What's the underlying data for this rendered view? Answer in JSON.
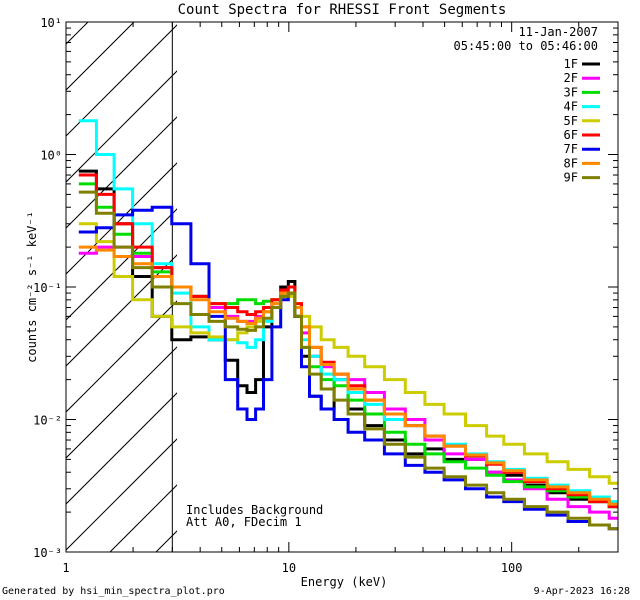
{
  "chart_data": {
    "type": "line",
    "title": "Count Spectra for RHESSI Front Segments",
    "xlabel": "Energy (keV)",
    "ylabel": "counts cm⁻² s⁻¹ keV⁻¹",
    "xscale": "log",
    "yscale": "log",
    "xlim": [
      1,
      300
    ],
    "ylim": [
      0.001,
      10
    ],
    "x_ticks": [
      {
        "value": 1,
        "label": "1"
      },
      {
        "value": 10,
        "label": "10"
      },
      {
        "value": 100,
        "label": "100"
      }
    ],
    "y_ticks": [
      {
        "value": 0.001,
        "label": "10⁻³"
      },
      {
        "value": 0.01,
        "label": "10⁻²"
      },
      {
        "value": 0.1,
        "label": "10⁻¹"
      },
      {
        "value": 1,
        "label": "10⁰"
      },
      {
        "value": 10,
        "label": "10¹"
      }
    ],
    "shaded_region": {
      "from": 1,
      "to": 3,
      "pattern": "diagonal hatch"
    },
    "date": "11-Jan-2007",
    "time_range": "05:45:00 to 05:46:00",
    "annotations": [
      "Includes Background",
      "Att A0, FDecim 1"
    ],
    "energy": [
      1.25,
      1.5,
      1.8,
      2.2,
      2.7,
      3.3,
      4.0,
      4.8,
      5.6,
      6.2,
      6.8,
      7.4,
      8.0,
      8.8,
      9.6,
      10.3,
      11.0,
      11.8,
      13,
      15,
      17,
      20,
      24,
      30,
      37,
      45,
      55,
      70,
      85,
      100,
      130,
      160,
      200,
      250,
      300
    ],
    "series": [
      {
        "name": "1F",
        "color": "#000000",
        "values": [
          0.75,
          0.55,
          0.3,
          0.12,
          0.06,
          0.04,
          0.042,
          0.04,
          0.028,
          0.018,
          0.016,
          0.02,
          0.05,
          0.07,
          0.1,
          0.11,
          0.06,
          0.03,
          0.015,
          0.012,
          0.02,
          0.012,
          0.009,
          0.007,
          0.0055,
          0.006,
          0.005,
          0.005,
          0.004,
          0.0038,
          0.0032,
          0.0028,
          0.0025,
          0.0024,
          0.0022
        ]
      },
      {
        "name": "2F",
        "color": "#ff00ff",
        "values": [
          0.18,
          0.2,
          0.2,
          0.17,
          0.14,
          0.1,
          0.085,
          0.07,
          0.06,
          0.055,
          0.055,
          0.06,
          0.07,
          0.08,
          0.09,
          0.09,
          0.07,
          0.045,
          0.03,
          0.025,
          0.022,
          0.02,
          0.016,
          0.012,
          0.01,
          0.007,
          0.0055,
          0.005,
          0.004,
          0.0035,
          0.003,
          0.0025,
          0.0022,
          0.002,
          0.0018
        ]
      },
      {
        "name": "3F",
        "color": "#00dd00",
        "values": [
          0.6,
          0.4,
          0.25,
          0.18,
          0.13,
          0.1,
          0.085,
          0.075,
          0.075,
          0.08,
          0.08,
          0.075,
          0.078,
          0.08,
          0.085,
          0.09,
          0.06,
          0.035,
          0.025,
          0.02,
          0.018,
          0.014,
          0.011,
          0.008,
          0.0065,
          0.0055,
          0.0048,
          0.0043,
          0.0038,
          0.0034,
          0.0031,
          0.0029,
          0.0026,
          0.0024,
          0.0022
        ]
      },
      {
        "name": "4F",
        "color": "#00ffff",
        "values": [
          1.8,
          1.0,
          0.55,
          0.3,
          0.15,
          0.09,
          0.05,
          0.04,
          0.04,
          0.038,
          0.035,
          0.04,
          0.055,
          0.075,
          0.09,
          0.09,
          0.06,
          0.04,
          0.03,
          0.022,
          0.02,
          0.016,
          0.013,
          0.01,
          0.009,
          0.0075,
          0.0065,
          0.0055,
          0.0048,
          0.0042,
          0.0036,
          0.0032,
          0.0029,
          0.0026,
          0.0024
        ]
      },
      {
        "name": "5F",
        "color": "#cccc00",
        "values": [
          0.3,
          0.22,
          0.12,
          0.08,
          0.06,
          0.05,
          0.045,
          0.042,
          0.04,
          0.045,
          0.05,
          0.055,
          0.065,
          0.08,
          0.09,
          0.085,
          0.07,
          0.06,
          0.05,
          0.04,
          0.035,
          0.03,
          0.025,
          0.02,
          0.016,
          0.013,
          0.011,
          0.009,
          0.0075,
          0.0065,
          0.0055,
          0.0048,
          0.0042,
          0.0037,
          0.0033
        ]
      },
      {
        "name": "6F",
        "color": "#ff0000",
        "values": [
          0.7,
          0.5,
          0.3,
          0.2,
          0.14,
          0.1,
          0.085,
          0.075,
          0.07,
          0.065,
          0.062,
          0.065,
          0.07,
          0.08,
          0.095,
          0.1,
          0.075,
          0.05,
          0.035,
          0.027,
          0.022,
          0.018,
          0.014,
          0.011,
          0.009,
          0.0075,
          0.0063,
          0.0053,
          0.0046,
          0.004,
          0.0034,
          0.003,
          0.0027,
          0.0024,
          0.0022
        ]
      },
      {
        "name": "7F",
        "color": "#0000ee",
        "values": [
          0.26,
          0.28,
          0.35,
          0.38,
          0.4,
          0.3,
          0.15,
          0.06,
          0.02,
          0.012,
          0.01,
          0.012,
          0.02,
          0.05,
          0.08,
          0.09,
          0.06,
          0.025,
          0.015,
          0.012,
          0.01,
          0.008,
          0.007,
          0.0055,
          0.0045,
          0.004,
          0.0035,
          0.003,
          0.0026,
          0.0024,
          0.0021,
          0.0019,
          0.0017,
          0.0016,
          0.0015
        ]
      },
      {
        "name": "8F",
        "color": "#ff8800",
        "values": [
          0.2,
          0.19,
          0.17,
          0.15,
          0.12,
          0.1,
          0.08,
          0.065,
          0.058,
          0.055,
          0.053,
          0.058,
          0.065,
          0.075,
          0.09,
          0.09,
          0.07,
          0.05,
          0.035,
          0.026,
          0.022,
          0.017,
          0.014,
          0.011,
          0.009,
          0.0075,
          0.0063,
          0.0054,
          0.0047,
          0.0041,
          0.0035,
          0.0031,
          0.0028,
          0.0025,
          0.0023
        ]
      },
      {
        "name": "9F",
        "color": "#808000",
        "values": [
          0.52,
          0.36,
          0.2,
          0.14,
          0.1,
          0.075,
          0.062,
          0.055,
          0.05,
          0.048,
          0.047,
          0.05,
          0.058,
          0.07,
          0.085,
          0.09,
          0.06,
          0.035,
          0.022,
          0.017,
          0.014,
          0.011,
          0.0085,
          0.0065,
          0.0052,
          0.0043,
          0.0037,
          0.0032,
          0.0028,
          0.0025,
          0.0022,
          0.002,
          0.0018,
          0.0016,
          0.0015
        ]
      }
    ]
  },
  "footer": {
    "generator": "Generated by hsi_min_spectra_plot.pro",
    "timestamp": "9-Apr-2023 16:28"
  }
}
